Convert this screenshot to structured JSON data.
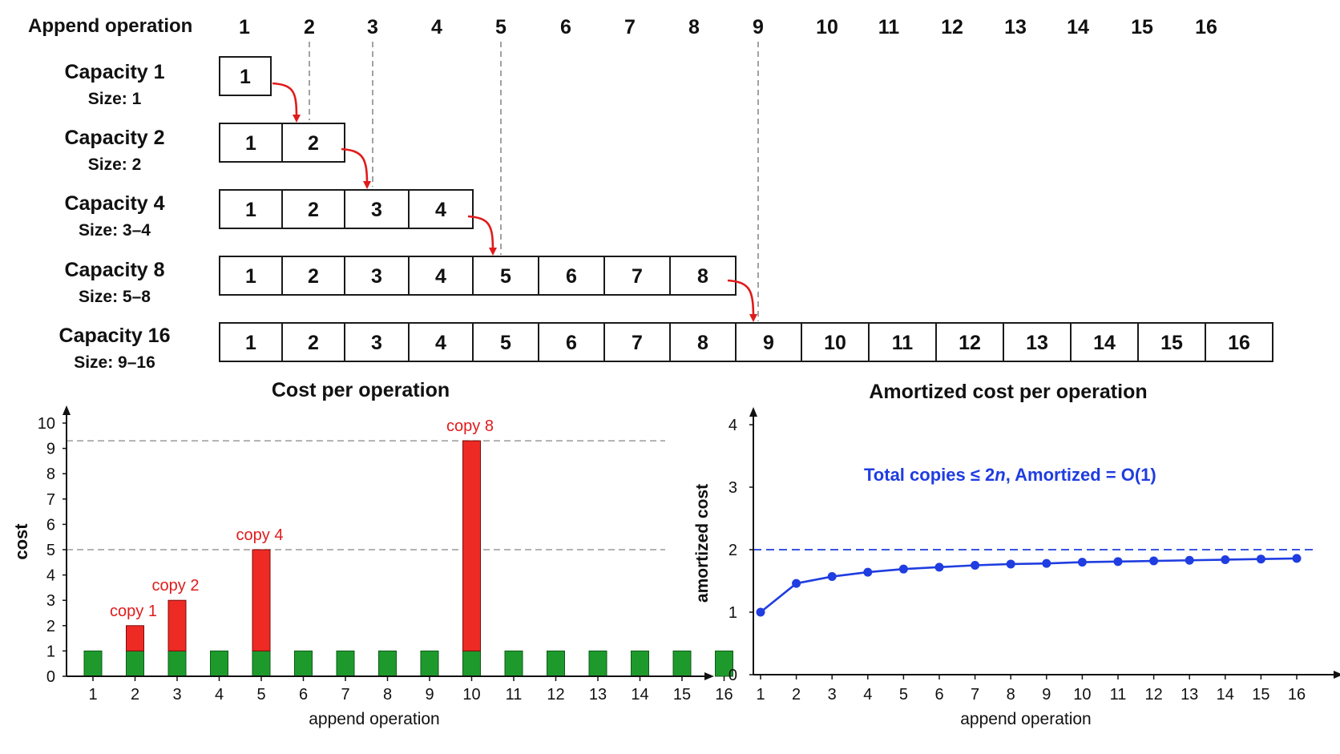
{
  "diagram": {
    "header_label": "Append operation",
    "operations": [
      "1",
      "2",
      "3",
      "4",
      "5",
      "6",
      "7",
      "8",
      "9",
      "10",
      "11",
      "12",
      "13",
      "14",
      "15",
      "16"
    ],
    "arrays": [
      {
        "title": "Capacity 1",
        "size": "Size: 1",
        "cells": [
          "1"
        ]
      },
      {
        "title": "Capacity 2",
        "size": "Size: 2",
        "cells": [
          "1",
          "2"
        ]
      },
      {
        "title": "Capacity 4",
        "size": "Size: 3–4",
        "cells": [
          "1",
          "2",
          "3",
          "4"
        ]
      },
      {
        "title": "Capacity 8",
        "size": "Size: 5–8",
        "cells": [
          "1",
          "2",
          "3",
          "4",
          "5",
          "6",
          "7",
          "8"
        ]
      },
      {
        "title": "Capacity 16",
        "size": "Size: 9–16",
        "cells": [
          "1",
          "2",
          "3",
          "4",
          "5",
          "6",
          "7",
          "8",
          "9",
          "10",
          "11",
          "12",
          "13",
          "14",
          "15",
          "16"
        ]
      }
    ],
    "resize_at_operations": [
      2,
      3,
      5,
      9
    ],
    "arrow_color": "#e01b1b"
  },
  "chart_data": [
    {
      "type": "bar",
      "title": "Cost per operation",
      "xlabel": "append operation",
      "ylabel": "cost",
      "categories": [
        "1",
        "2",
        "3",
        "4",
        "5",
        "6",
        "7",
        "8",
        "9",
        "10",
        "11",
        "12",
        "13",
        "14",
        "15",
        "16"
      ],
      "series": [
        {
          "values": [
            1,
            1,
            1,
            1,
            1,
            1,
            1,
            1,
            1,
            1,
            1,
            1,
            1,
            1,
            1,
            1
          ],
          "color": "#1e9a2c"
        },
        {
          "values": [
            0,
            1,
            2,
            0,
            4,
            0,
            0,
            0,
            0,
            8.3,
            0,
            0,
            0,
            0,
            0,
            0
          ],
          "color": "#ee2a24"
        }
      ],
      "stacked": true,
      "ylim": [
        0,
        10
      ],
      "yticks": [
        "0",
        "1",
        "2",
        "3",
        "4",
        "5",
        "6",
        "7",
        "8",
        "9",
        "10"
      ],
      "reference_lines": [
        5,
        9.3
      ],
      "annotations": [
        {
          "category": "2",
          "text": "copy 1"
        },
        {
          "category": "3",
          "text": "copy 2"
        },
        {
          "category": "5",
          "text": "copy 4"
        },
        {
          "category": "10",
          "text": "copy 8"
        }
      ],
      "annotation_color": "#e01b1b"
    },
    {
      "type": "line",
      "title": "Amortized cost per operation",
      "xlabel": "append operation",
      "ylabel": "amortized cost",
      "x": [
        "1",
        "2",
        "3",
        "4",
        "5",
        "6",
        "7",
        "8",
        "9",
        "10",
        "11",
        "12",
        "13",
        "14",
        "15",
        "16"
      ],
      "series": [
        {
          "values": [
            1.0,
            1.46,
            1.57,
            1.64,
            1.69,
            1.72,
            1.75,
            1.77,
            1.78,
            1.8,
            1.81,
            1.82,
            1.83,
            1.84,
            1.85,
            1.86
          ],
          "color": "#1f3de0"
        }
      ],
      "ylim": [
        0,
        4
      ],
      "yticks": [
        "0",
        "1",
        "2",
        "3",
        "4"
      ],
      "reference_line": 2,
      "annotation": {
        "text": "Total copies ≤ 2n, Amortized = O(1)",
        "prefix": "Total copies ≤ 2",
        "italic": "n",
        "suffix": ",  Amortized = O(1)",
        "color": "#1f3de0"
      }
    }
  ]
}
